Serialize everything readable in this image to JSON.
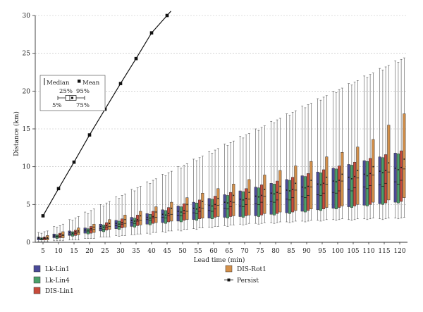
{
  "chart_data": {
    "type": "box",
    "xlabel": "Lead time (min)",
    "ylabel": "Distance (km)",
    "ylim": [
      0,
      30
    ],
    "yticks": [
      0,
      5,
      10,
      15,
      20,
      25,
      30
    ],
    "grid": "horizontal dashed",
    "categories": [
      "5",
      "10",
      "15",
      "20",
      "25",
      "30",
      "35",
      "40",
      "45",
      "50",
      "55",
      "60",
      "65",
      "70",
      "75",
      "80",
      "85",
      "90",
      "95",
      "100",
      "105",
      "110",
      "115",
      "120"
    ],
    "series": [
      {
        "name": "Lk-Lin1",
        "color": "#4a4a98",
        "p5": [
          0.1,
          0.2,
          0.3,
          0.5,
          0.7,
          0.9,
          1.0,
          1.2,
          1.4,
          1.6,
          1.8,
          2.0,
          2.2,
          2.4,
          2.5,
          2.6,
          2.7,
          2.8,
          2.9,
          3.0,
          3.0,
          3.1,
          3.1,
          3.2
        ],
        "p25": [
          0.3,
          0.6,
          0.9,
          1.2,
          1.5,
          1.8,
          2.1,
          2.4,
          2.6,
          2.8,
          3.0,
          3.2,
          3.3,
          3.4,
          3.5,
          3.7,
          3.9,
          4.1,
          4.3,
          4.5,
          4.7,
          4.9,
          5.1,
          5.3
        ],
        "median": [
          0.5,
          0.8,
          1.1,
          1.5,
          1.8,
          2.2,
          2.6,
          3.0,
          3.3,
          3.6,
          3.9,
          4.2,
          4.5,
          4.8,
          5.1,
          5.4,
          5.7,
          6.0,
          6.3,
          6.6,
          7.0,
          7.3,
          7.6,
          8.0
        ],
        "mean": [
          0.6,
          0.9,
          1.3,
          1.7,
          2.1,
          2.5,
          2.9,
          3.3,
          3.7,
          4.1,
          4.5,
          4.9,
          5.3,
          5.7,
          6.1,
          6.5,
          6.9,
          7.3,
          7.7,
          8.1,
          8.6,
          9.0,
          9.4,
          9.8
        ],
        "p75": [
          0.7,
          1.1,
          1.5,
          1.9,
          2.4,
          2.9,
          3.3,
          3.8,
          4.3,
          4.8,
          5.3,
          5.8,
          6.3,
          6.8,
          7.3,
          7.8,
          8.3,
          8.8,
          9.3,
          9.8,
          10.3,
          10.8,
          11.3,
          11.8
        ],
        "p95": [
          1.3,
          2.1,
          3.0,
          4.0,
          5.0,
          6.0,
          7.0,
          8.0,
          9.0,
          10.0,
          11.0,
          12.0,
          13.0,
          14.0,
          15.0,
          16.0,
          17.0,
          18.0,
          19.0,
          20.0,
          21.0,
          22.0,
          23.0,
          24.0
        ]
      },
      {
        "name": "Lk-Lin4",
        "color": "#4aa06a",
        "p5": [
          0.1,
          0.2,
          0.3,
          0.5,
          0.7,
          0.8,
          1.0,
          1.1,
          1.3,
          1.5,
          1.7,
          1.9,
          2.1,
          2.3,
          2.4,
          2.5,
          2.6,
          2.7,
          2.8,
          2.9,
          2.9,
          3.0,
          3.0,
          3.1
        ],
        "p25": [
          0.3,
          0.5,
          0.8,
          1.1,
          1.4,
          1.7,
          2.0,
          2.3,
          2.5,
          2.7,
          2.9,
          3.1,
          3.2,
          3.3,
          3.4,
          3.6,
          3.8,
          4.0,
          4.2,
          4.4,
          4.6,
          4.8,
          5.0,
          5.2
        ],
        "median": [
          0.4,
          0.7,
          1.0,
          1.4,
          1.7,
          2.1,
          2.5,
          2.9,
          3.2,
          3.5,
          3.8,
          4.1,
          4.4,
          4.7,
          5.0,
          5.3,
          5.6,
          5.9,
          6.2,
          6.5,
          6.8,
          7.1,
          7.4,
          7.7
        ],
        "mean": [
          0.5,
          0.8,
          1.2,
          1.6,
          2.0,
          2.4,
          2.8,
          3.2,
          3.6,
          4.0,
          4.4,
          4.8,
          5.2,
          5.6,
          6.0,
          6.4,
          6.8,
          7.2,
          7.6,
          8.0,
          8.4,
          8.8,
          9.2,
          9.6
        ],
        "p75": [
          0.6,
          1.0,
          1.4,
          1.8,
          2.3,
          2.8,
          3.2,
          3.7,
          4.2,
          4.7,
          5.2,
          5.7,
          6.2,
          6.7,
          7.2,
          7.7,
          8.2,
          8.7,
          9.2,
          9.7,
          10.2,
          10.7,
          11.2,
          11.7
        ],
        "p95": [
          1.2,
          2.0,
          2.9,
          3.8,
          4.8,
          5.8,
          6.8,
          7.8,
          8.8,
          9.8,
          10.8,
          11.8,
          12.8,
          13.8,
          14.8,
          15.8,
          16.8,
          17.8,
          18.8,
          19.8,
          20.8,
          21.8,
          22.8,
          23.8
        ]
      },
      {
        "name": "DIS-Lin1",
        "color": "#c84a3a",
        "p5": [
          0.1,
          0.2,
          0.3,
          0.5,
          0.7,
          0.9,
          1.1,
          1.3,
          1.5,
          1.7,
          1.9,
          2.1,
          2.3,
          2.4,
          2.5,
          2.6,
          2.7,
          2.8,
          2.9,
          3.0,
          3.0,
          3.1,
          3.1,
          3.2
        ],
        "p25": [
          0.3,
          0.6,
          0.9,
          1.2,
          1.6,
          1.9,
          2.2,
          2.5,
          2.7,
          2.9,
          3.1,
          3.3,
          3.4,
          3.5,
          3.6,
          3.8,
          4.0,
          4.2,
          4.4,
          4.6,
          4.8,
          5.0,
          5.2,
          5.4
        ],
        "median": [
          0.5,
          0.8,
          1.2,
          1.6,
          2.0,
          2.4,
          2.8,
          3.2,
          3.5,
          3.8,
          4.1,
          4.4,
          4.7,
          5.0,
          5.3,
          5.6,
          5.9,
          6.2,
          6.5,
          6.8,
          7.2,
          7.5,
          7.8,
          8.2
        ],
        "mean": [
          0.6,
          1.0,
          1.4,
          1.8,
          2.2,
          2.6,
          3.0,
          3.4,
          3.8,
          4.2,
          4.6,
          5.0,
          5.4,
          5.8,
          6.2,
          6.6,
          7.0,
          7.4,
          7.8,
          8.2,
          8.7,
          9.1,
          9.5,
          9.9
        ],
        "p75": [
          0.7,
          1.2,
          1.6,
          2.1,
          2.6,
          3.1,
          3.6,
          4.1,
          4.6,
          5.1,
          5.6,
          6.1,
          6.6,
          7.1,
          7.6,
          8.1,
          8.6,
          9.1,
          9.6,
          10.1,
          10.6,
          11.1,
          11.6,
          12.1
        ],
        "p95": [
          1.4,
          2.2,
          3.2,
          4.2,
          5.2,
          6.2,
          7.2,
          8.2,
          9.2,
          10.2,
          11.2,
          12.2,
          13.2,
          14.2,
          15.2,
          16.2,
          17.2,
          18.2,
          19.2,
          20.2,
          21.2,
          22.2,
          23.2,
          24.2
        ]
      },
      {
        "name": "DIS-Rot1",
        "color": "#d4904a",
        "p5": [
          0.1,
          0.2,
          0.3,
          0.5,
          0.7,
          0.9,
          1.1,
          1.3,
          1.5,
          1.7,
          1.9,
          2.1,
          2.3,
          2.5,
          2.6,
          2.7,
          2.8,
          2.9,
          3.0,
          3.1,
          3.1,
          3.2,
          3.2,
          3.3
        ],
        "p25": [
          0.3,
          0.6,
          1.0,
          1.3,
          1.7,
          2.0,
          2.3,
          2.6,
          2.8,
          3.0,
          3.2,
          3.4,
          3.5,
          3.6,
          3.8,
          4.0,
          4.2,
          4.4,
          4.6,
          4.8,
          5.0,
          5.3,
          5.6,
          5.9
        ],
        "median": [
          0.5,
          0.9,
          1.3,
          1.7,
          2.1,
          2.5,
          2.9,
          3.3,
          3.7,
          4.1,
          4.5,
          4.9,
          5.3,
          5.7,
          6.1,
          6.5,
          6.9,
          7.3,
          7.7,
          8.1,
          8.5,
          8.9,
          9.3,
          9.7
        ],
        "mean": [
          0.6,
          1.0,
          1.5,
          2.0,
          2.5,
          3.0,
          3.5,
          4.0,
          4.5,
          5.0,
          5.4,
          5.8,
          6.2,
          6.6,
          7.0,
          7.4,
          7.8,
          8.2,
          8.6,
          9.0,
          9.5,
          10.0,
          10.5,
          11.0
        ],
        "p75": [
          0.9,
          1.4,
          1.9,
          2.4,
          3.0,
          3.6,
          4.1,
          4.7,
          5.3,
          5.9,
          6.5,
          7.1,
          7.7,
          8.3,
          8.9,
          9.5,
          10.1,
          10.7,
          11.3,
          11.9,
          12.6,
          13.6,
          15.5,
          17.0
        ],
        "p95": [
          1.5,
          2.4,
          3.4,
          4.4,
          5.4,
          6.4,
          7.4,
          8.4,
          9.4,
          10.4,
          11.4,
          12.4,
          13.4,
          14.4,
          15.4,
          16.4,
          17.4,
          18.4,
          19.4,
          20.4,
          21.4,
          22.4,
          23.4,
          24.4
        ]
      }
    ],
    "persist": {
      "name": "Persist",
      "x": [
        "5",
        "10",
        "15",
        "20",
        "25",
        "30",
        "35",
        "40",
        "45"
      ],
      "y": [
        3.5,
        7.1,
        10.6,
        14.2,
        17.6,
        21.0,
        24.3,
        27.7,
        30.0
      ]
    },
    "legend": {
      "placement": "bottom",
      "entries": [
        "Lk-Lin1",
        "Lk-Lin4",
        "DIS-Lin1",
        "DIS-Rot1",
        "Persist"
      ]
    },
    "inset_key": {
      "median_label": "Median",
      "mean_label": "Mean",
      "p5_label": "5%",
      "p25_label": "25%",
      "p75_label": "75%",
      "p95_label": "95%"
    }
  }
}
